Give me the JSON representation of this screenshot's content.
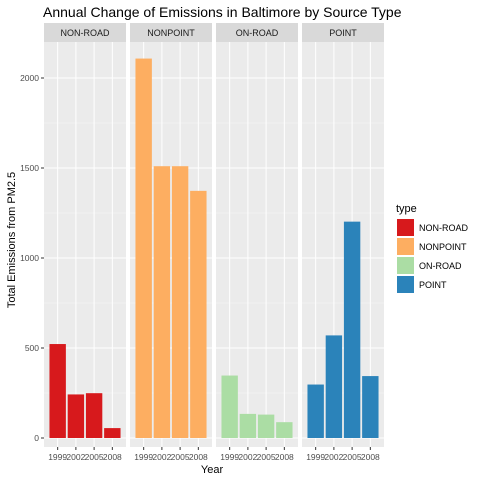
{
  "chart_data": {
    "type": "bar",
    "title": "Annual Change of Emissions in Baltimore by Source Type",
    "xlabel": "Year",
    "ylabel": "Total Emissions from PM2.5",
    "categories": [
      "1999",
      "2002",
      "2005",
      "2008"
    ],
    "ylim": [
      -50,
      2200
    ],
    "yticks": [
      0,
      500,
      1000,
      1500,
      2000
    ],
    "grid": true,
    "legend": {
      "title": "type",
      "position": "right"
    },
    "panels": [
      {
        "name": "NON-ROAD",
        "color": "#D7191C",
        "values": [
          522,
          242,
          249,
          55
        ]
      },
      {
        "name": "NONPOINT",
        "color": "#FDAE61",
        "values": [
          2108,
          1510,
          1510,
          1373
        ]
      },
      {
        "name": "ON-ROAD",
        "color": "#ABDDA4",
        "values": [
          347,
          134,
          130,
          88
        ]
      },
      {
        "name": "POINT",
        "color": "#2B83BA",
        "values": [
          297,
          570,
          1202,
          344
        ]
      }
    ]
  }
}
